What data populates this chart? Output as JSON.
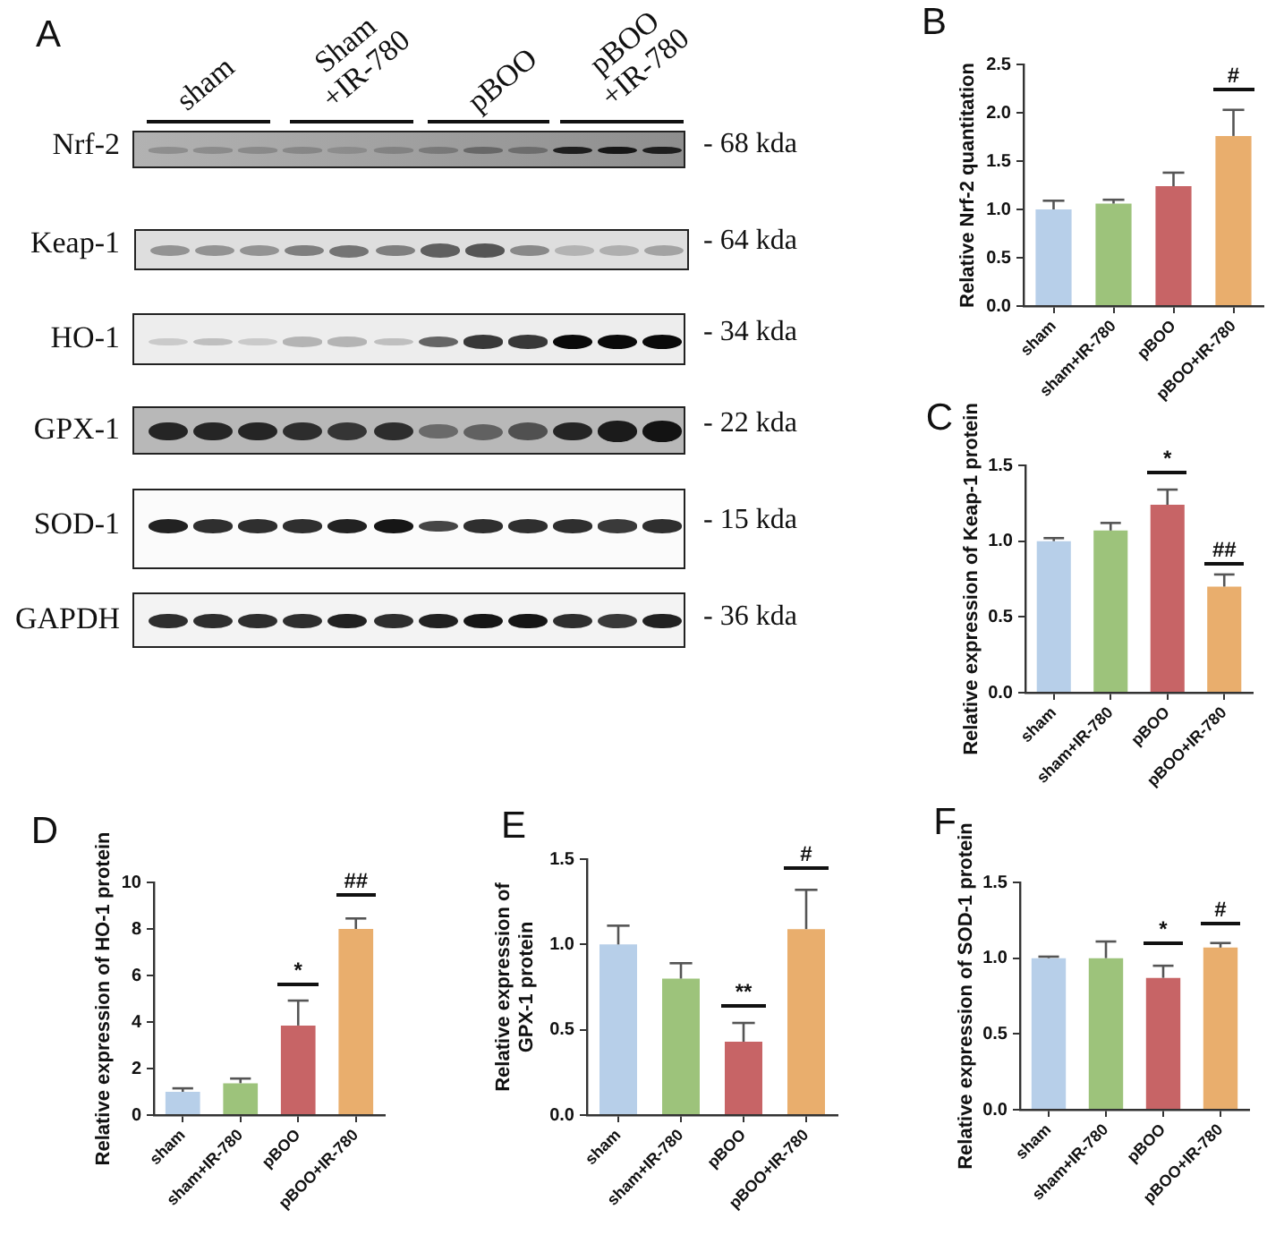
{
  "chart_data": [
    {
      "type": "other",
      "title": "A",
      "categories": [
        "sham",
        "Sham\n+IR-780",
        "pBOO",
        "pBOO\n+IR-780"
      ],
      "y_categories": [
        "Nrf-2",
        "Keap-1",
        "HO-1",
        "GPX-1",
        "SOD-1",
        "GAPDH"
      ],
      "y2_categories": [
        "- 68 kda",
        "- 64 kda",
        "- 34 kda",
        "- 22 kda",
        "- 15 kda",
        "- 36 kda"
      ]
    },
    {
      "type": "bar",
      "title": "B",
      "ylabel": "Relative Nrf-2 quantitation",
      "categories": [
        "sham",
        "sham+IR-780",
        "pBOO",
        "pBOO+IR-780"
      ],
      "values": [
        1.0,
        1.06,
        1.24,
        1.76
      ],
      "colors": [
        "#b7cfe9",
        "#9dc37b",
        "#c76466",
        "#e9ae6d"
      ],
      "errors": [
        [
          1.0,
          1.09
        ],
        [
          1.06,
          1.1
        ],
        [
          1.24,
          1.38
        ],
        [
          1.76,
          2.03
        ]
      ],
      "ylim": [
        0,
        2.5
      ],
      "yticks": [
        {
          "value": 0,
          "label": "0.0"
        },
        0.5,
        {
          "value": 1,
          "label": "1.0"
        },
        1.5,
        {
          "value": 2,
          "label": "2.0"
        },
        2.5
      ],
      "annotations": [
        "#"
      ]
    },
    {
      "type": "bar",
      "title": "C",
      "ylabel": "Relative expression of Keap-1 protein",
      "categories": [
        "sham",
        "sham+IR-780",
        "pBOO",
        "pBOO+IR-780"
      ],
      "values": [
        1.0,
        1.07,
        1.24,
        0.7
      ],
      "colors": [
        "#b7cfe9",
        "#9dc37b",
        "#c76466",
        "#e9ae6d"
      ],
      "errors": [
        [
          1.0,
          1.02
        ],
        [
          1.07,
          1.12
        ],
        [
          1.24,
          1.34
        ],
        [
          0.7,
          0.78
        ]
      ],
      "ylim": [
        0,
        1.5
      ],
      "yticks": [
        {
          "value": 0,
          "label": "0.0"
        },
        0.5,
        {
          "value": 1,
          "label": "1.0"
        },
        1.5
      ],
      "annotations": [
        "*",
        "##"
      ]
    },
    {
      "type": "bar",
      "title": "D",
      "ylabel": "Relative expression of HO-1 protein",
      "categories": [
        "sham",
        "sham+IR-780",
        "pBOO",
        "pBOO+IR-780"
      ],
      "values": [
        1.0,
        1.37,
        3.85,
        8.0
      ],
      "colors": [
        "#b7cfe9",
        "#9dc37b",
        "#c76466",
        "#e9ae6d"
      ],
      "errors": [
        [
          1.0,
          1.15
        ],
        [
          1.37,
          1.57
        ],
        [
          3.85,
          4.92
        ],
        [
          8.0,
          8.45
        ]
      ],
      "ylim": [
        0,
        10
      ],
      "yticks": [
        0,
        2,
        4,
        6,
        8,
        10
      ],
      "annotations": [
        "*",
        "##"
      ]
    },
    {
      "type": "bar",
      "title": "E",
      "ylabel": "Relative expression of\nGPX-1 protein",
      "categories": [
        "sham",
        "sham+IR-780",
        "pBOO",
        "pBOO+IR-780"
      ],
      "values": [
        1.0,
        0.8,
        0.43,
        1.09
      ],
      "colors": [
        "#b7cfe9",
        "#9dc37b",
        "#c76466",
        "#e9ae6d"
      ],
      "errors": [
        [
          1.0,
          1.11
        ],
        [
          0.8,
          0.89
        ],
        [
          0.43,
          0.54
        ],
        [
          1.09,
          1.32
        ]
      ],
      "ylim": [
        0,
        1.5
      ],
      "yticks": [
        {
          "value": 0,
          "label": "0.0"
        },
        0.5,
        {
          "value": 1,
          "label": "1.0"
        },
        1.5
      ],
      "annotations": [
        "**",
        "#"
      ]
    },
    {
      "type": "bar",
      "title": "F",
      "ylabel": "Relative expression of SOD-1 protein",
      "categories": [
        "sham",
        "sham+IR-780",
        "pBOO",
        "pBOO+IR-780"
      ],
      "values": [
        1.0,
        1.0,
        0.87,
        1.07
      ],
      "colors": [
        "#b7cfe9",
        "#9dc37b",
        "#c76466",
        "#e9ae6d"
      ],
      "errors": [
        [
          1.0,
          1.01
        ],
        [
          1.0,
          1.11
        ],
        [
          0.87,
          0.95
        ],
        [
          1.07,
          1.1
        ]
      ],
      "ylim": [
        0,
        1.5
      ],
      "yticks": [
        {
          "value": 0,
          "label": "0.0"
        },
        0.5,
        {
          "value": 1,
          "label": "1.0"
        },
        1.5
      ],
      "annotations": [
        "*",
        "#"
      ]
    }
  ]
}
